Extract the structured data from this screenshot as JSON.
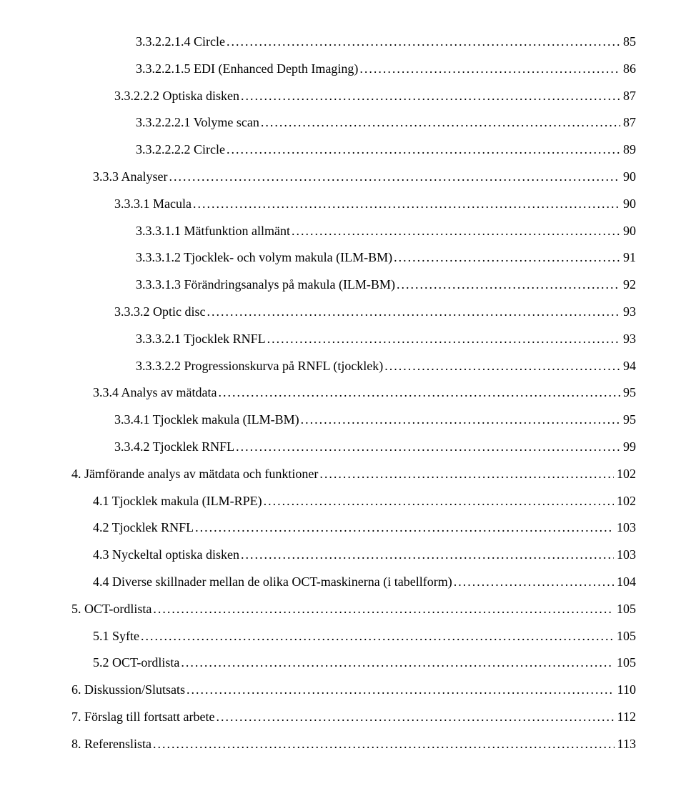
{
  "toc": [
    {
      "indent": 3,
      "label": "3.3.2.2.1.4 Circle",
      "page": "85"
    },
    {
      "indent": 3,
      "label": "3.3.2.2.1.5 EDI (Enhanced Depth Imaging)",
      "page": "86"
    },
    {
      "indent": 2,
      "label": "3.3.2.2.2 Optiska disken",
      "page": "87"
    },
    {
      "indent": 3,
      "label": "3.3.2.2.2.1 Volyme scan",
      "page": "87"
    },
    {
      "indent": 3,
      "label": "3.3.2.2.2.2 Circle",
      "page": "89"
    },
    {
      "indent": 1,
      "label": "3.3.3 Analyser",
      "page": "90"
    },
    {
      "indent": 2,
      "label": "3.3.3.1 Macula",
      "page": "90"
    },
    {
      "indent": 3,
      "label": "3.3.3.1.1 Mätfunktion allmänt",
      "page": "90"
    },
    {
      "indent": 3,
      "label": "3.3.3.1.2 Tjocklek- och volym makula (ILM-BM)",
      "page": "91"
    },
    {
      "indent": 3,
      "label": "3.3.3.1.3 Förändringsanalys på makula (ILM-BM)",
      "page": "92"
    },
    {
      "indent": 2,
      "label": "3.3.3.2 Optic disc",
      "page": "93"
    },
    {
      "indent": 3,
      "label": "3.3.3.2.1 Tjocklek RNFL",
      "page": "93"
    },
    {
      "indent": 3,
      "label": "3.3.3.2.2 Progressionskurva på RNFL (tjocklek)",
      "page": "94"
    },
    {
      "indent": 1,
      "label": "3.3.4 Analys av mätdata",
      "page": "95"
    },
    {
      "indent": 2,
      "label": "3.3.4.1 Tjocklek makula (ILM-BM)",
      "page": "95"
    },
    {
      "indent": 2,
      "label": "3.3.4.2 Tjocklek RNFL",
      "page": "99"
    },
    {
      "indent": 0,
      "label": "4. Jämförande analys av mätdata och funktioner",
      "page": "102"
    },
    {
      "indent": 1,
      "label": "4.1 Tjocklek makula (ILM-RPE)",
      "page": "102"
    },
    {
      "indent": 1,
      "label": "4.2 Tjocklek RNFL",
      "page": "103"
    },
    {
      "indent": 1,
      "label": "4.3 Nyckeltal optiska disken",
      "page": "103"
    },
    {
      "indent": 1,
      "label": "4.4 Diverse skillnader mellan de olika OCT-maskinerna (i tabellform)",
      "page": "104"
    },
    {
      "indent": 0,
      "label": "5. OCT-ordlista",
      "page": "105"
    },
    {
      "indent": 1,
      "label": "5.1 Syfte",
      "page": "105"
    },
    {
      "indent": 1,
      "label": "5.2 OCT-ordlista",
      "page": "105"
    },
    {
      "indent": 0,
      "label": "6. Diskussion/Slutsats",
      "page": "110"
    },
    {
      "indent": 0,
      "label": "7. Förslag till fortsatt arbete",
      "page": "112"
    },
    {
      "indent": 0,
      "label": "8. Referenslista",
      "page": "113"
    }
  ]
}
